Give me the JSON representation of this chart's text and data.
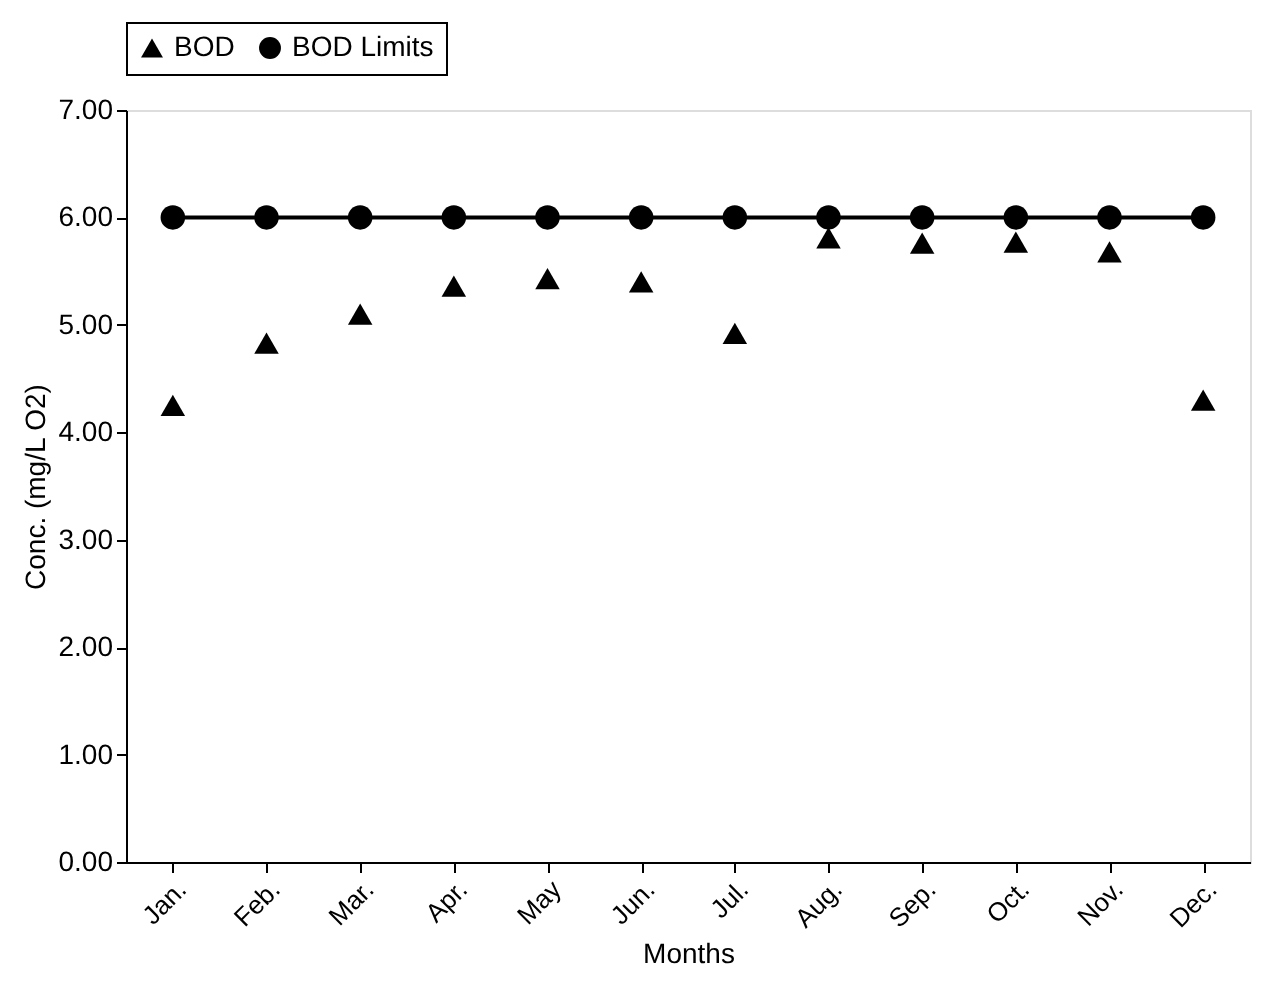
{
  "chart_data": {
    "type": "line",
    "xlabel": "Months",
    "ylabel": "Conc. (mg/L O2)",
    "categories": [
      "Jan.",
      "Feb.",
      "Mar.",
      "Apr.",
      "May",
      "Jun.",
      "Jul.",
      "Aug.",
      "Sep.",
      "Oct.",
      "Nov.",
      "Dec."
    ],
    "series": [
      {
        "name": "BOD",
        "type": "scatter",
        "marker": "triangle",
        "color": "#000000",
        "values": [
          4.25,
          4.83,
          5.1,
          5.36,
          5.43,
          5.4,
          4.92,
          5.81,
          5.76,
          5.77,
          5.68,
          4.3
        ]
      },
      {
        "name": "BOD Limits",
        "marker": "circle",
        "line_style": "solid",
        "color": "#000000",
        "values": [
          6.0,
          6.0,
          6.0,
          6.0,
          6.0,
          6.0,
          6.0,
          6.0,
          6.0,
          6.0,
          6.0,
          6.0
        ]
      }
    ],
    "ylim": [
      0,
      7
    ],
    "yticks": [
      {
        "value": 0,
        "label": "0.00"
      },
      {
        "value": 1,
        "label": "1.00"
      },
      {
        "value": 2,
        "label": "2.00"
      },
      {
        "value": 3,
        "label": "3.00"
      },
      {
        "value": 4,
        "label": "4.00"
      },
      {
        "value": 5,
        "label": "5.00"
      },
      {
        "value": 6,
        "label": "6.00"
      },
      {
        "value": 7,
        "label": "7.00"
      }
    ],
    "grid": false,
    "legend": "top"
  }
}
